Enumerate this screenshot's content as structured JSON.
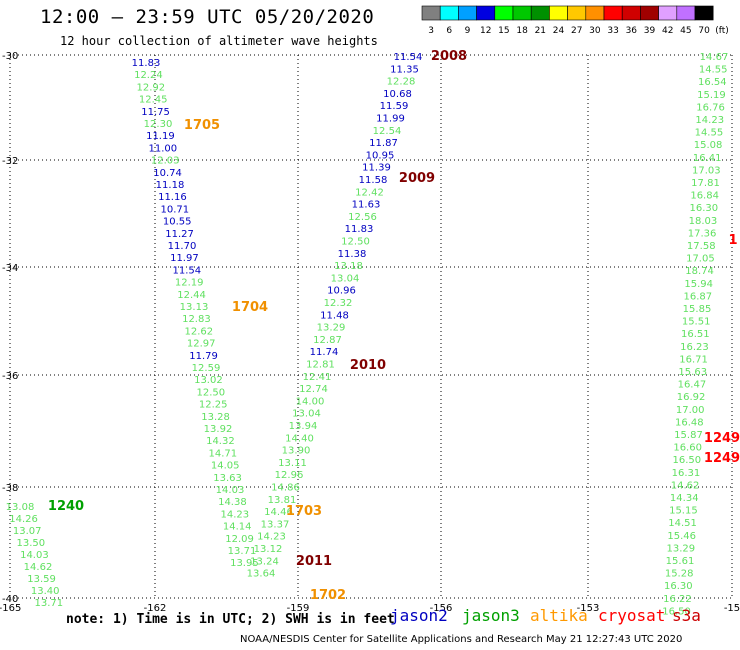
{
  "header": {
    "title": "12:00 – 23:59 UTC 05/20/2020",
    "subtitle": "12 hour collection of altimeter wave heights"
  },
  "color_scale": {
    "bins": [
      {
        "label": "3",
        "color": "#808080"
      },
      {
        "label": "6",
        "color": "#00ffff"
      },
      {
        "label": "9",
        "color": "#00a0ff"
      },
      {
        "label": "12",
        "color": "#0000e0"
      },
      {
        "label": "15",
        "color": "#00ff00"
      },
      {
        "label": "18",
        "color": "#00c800"
      },
      {
        "label": "21",
        "color": "#009000"
      },
      {
        "label": "24",
        "color": "#ffff00"
      },
      {
        "label": "27",
        "color": "#ffc800"
      },
      {
        "label": "30",
        "color": "#ff9000"
      },
      {
        "label": "33",
        "color": "#ff0000"
      },
      {
        "label": "36",
        "color": "#d00000"
      },
      {
        "label": "39",
        "color": "#a00000"
      },
      {
        "label": "42",
        "color": "#e0a0ff"
      },
      {
        "label": "45",
        "color": "#c070ff"
      },
      {
        "label": "70",
        "color": "#000000"
      }
    ],
    "unit": "(ft)"
  },
  "map": {
    "lon_labels": [
      "-165",
      "-162",
      "-159",
      "-156",
      "-153",
      "-15"
    ],
    "lat_labels": [
      "-30",
      "-32",
      "-34",
      "-36",
      "-38",
      "-40"
    ]
  },
  "colors": {
    "jason2": "#0000c0",
    "jason3": "#60e060",
    "altika": "#ff9900",
    "cryosat": "#ff0000",
    "s3a": "#cc0000",
    "time_dark": "#800000",
    "time_green": "#00a000",
    "time_orange": "#f09000",
    "time_red": "#ff0000"
  },
  "tracks": [
    {
      "type": "jason2",
      "x0": 146,
      "y0": 62,
      "dx": 2.4,
      "dy": 12.2,
      "values": [
        "11.83",
        "12.24",
        "12.92",
        "12.45",
        "11.75",
        "12.30",
        "11.19",
        "11.00",
        "12.03",
        "10.74",
        "11.18",
        "11.16",
        "10.71",
        "10.55",
        "11.27",
        "11.70",
        "11.97",
        "11.54",
        "12.19",
        "12.44",
        "13.13",
        "12.83",
        "12.62",
        "12.97",
        "11.79",
        "12.59",
        "13.02",
        "12.50",
        "12.25",
        "13.28",
        "13.92",
        "14.32",
        "14.71",
        "14.05",
        "13.63",
        "14.03",
        "14.38",
        "14.23",
        "14.14",
        "12.09",
        "13.71",
        "13.95"
      ],
      "colors": [
        "j2",
        "j3",
        "j3",
        "j3",
        "j2",
        "j3",
        "j2",
        "j2",
        "j3",
        "j2",
        "j2",
        "j2",
        "j2",
        "j2",
        "j2",
        "j2",
        "j2",
        "j2",
        "j3",
        "j3",
        "j3",
        "j3",
        "j3",
        "j3",
        "j2",
        "j3",
        "j3",
        "j3",
        "j3",
        "j3",
        "j3",
        "j3",
        "j3",
        "j3",
        "j3",
        "j3",
        "j3",
        "j3",
        "j3",
        "j3",
        "j3",
        "j3"
      ]
    },
    {
      "type": "jason3",
      "x0": 408,
      "y0": 56,
      "dx": -3.5,
      "dy": 12.3,
      "values": [
        "11.54",
        "11.35",
        "12.28",
        "10.68",
        "11.59",
        "11.99",
        "12.54",
        "11.87",
        "10.95",
        "11.39",
        "11.58",
        "12.42",
        "11.63",
        "12.56",
        "11.83",
        "12.50",
        "11.38",
        "13.18",
        "13.04",
        "10.96",
        "12.32",
        "11.48",
        "13.29",
        "12.87",
        "11.74",
        "12.81",
        "12.41",
        "12.74",
        "14.00",
        "13.04",
        "13.94",
        "14.40",
        "13.90",
        "13.11",
        "12.96",
        "14.86",
        "13.81",
        "14.46",
        "13.37",
        "14.23",
        "13.12",
        "13.24",
        "13.64"
      ],
      "colors": [
        "j2",
        "j2",
        "j3",
        "j2",
        "j2",
        "j2",
        "j3",
        "j2",
        "j2",
        "j2",
        "j2",
        "j3",
        "j2",
        "j3",
        "j2",
        "j3",
        "j2",
        "j3",
        "j3",
        "j2",
        "j3",
        "j2",
        "j3",
        "j3",
        "j2",
        "j3",
        "j3",
        "j3",
        "j3",
        "j3",
        "j3",
        "j3",
        "j3",
        "j3",
        "j3",
        "j3",
        "j3",
        "j3",
        "j3",
        "j3",
        "j3",
        "j3",
        "j3"
      ]
    },
    {
      "type": "s3a",
      "x0": 714,
      "y0": 56,
      "dx": -0.85,
      "dy": 12.6,
      "values": [
        "14.67",
        "14.55",
        "16.54",
        "15.19",
        "16.76",
        "14.23",
        "14.55",
        "15.08",
        "16.41",
        "17.03",
        "17.81",
        "16.84",
        "16.30",
        "18.03",
        "17.36",
        "17.58",
        "17.05",
        "18.74",
        "15.94",
        "16.87",
        "15.85",
        "15.51",
        "16.51",
        "16.23",
        "16.71",
        "15.63",
        "16.47",
        "16.92",
        "17.00",
        "16.48",
        "15.87",
        "16.60",
        "16.50",
        "16.31",
        "14.62",
        "14.34",
        "15.15",
        "14.51",
        "15.46",
        "13.29",
        "15.61",
        "15.28",
        "16.30",
        "16.22",
        "16.50"
      ],
      "colors": [
        "j3",
        "j3",
        "j3",
        "j3",
        "j3",
        "j3",
        "j3",
        "j3",
        "j3",
        "j3",
        "j3",
        "j3",
        "j3",
        "j3",
        "j3",
        "j3",
        "j3",
        "j3",
        "j3",
        "j3",
        "j3",
        "j3",
        "j3",
        "j3",
        "j3",
        "j3",
        "j3",
        "j3",
        "j3",
        "j3",
        "j3",
        "j3",
        "j3",
        "j3",
        "j3",
        "j3",
        "j3",
        "j3",
        "j3",
        "j3",
        "j3",
        "j3",
        "j3",
        "j3",
        "j3"
      ]
    },
    {
      "type": "jason3",
      "x0": 20,
      "y0": 506,
      "dx": 3.6,
      "dy": 12.0,
      "values": [
        "13.08",
        "14.26",
        "13.07",
        "13.50",
        "14.03",
        "14.62",
        "13.59",
        "13.40",
        "13.71"
      ],
      "colors": [
        "j3",
        "j3",
        "j3",
        "j3",
        "j3",
        "j3",
        "j3",
        "j3",
        "j3"
      ]
    }
  ],
  "time_labels": [
    {
      "text": "2008",
      "color": "time_dark"
    },
    {
      "text": "2009",
      "color": "time_dark"
    },
    {
      "text": "2010",
      "color": "time_dark"
    },
    {
      "text": "2011",
      "color": "time_dark"
    },
    {
      "text": "1705",
      "color": "time_orange"
    },
    {
      "text": "1704",
      "color": "time_orange"
    },
    {
      "text": "1703",
      "color": "time_orange"
    },
    {
      "text": "1702",
      "color": "time_orange"
    },
    {
      "text": "1240",
      "color": "time_green"
    },
    {
      "text": "1249",
      "color": "time_red"
    },
    {
      "text": "1249",
      "color": "time_red"
    },
    {
      "text": "1",
      "color": "time_red"
    }
  ],
  "note": "note: 1) Time is in UTC; 2) SWH is in feet",
  "legend": [
    {
      "label": "jason2",
      "color": "#0000c0"
    },
    {
      "label": "jason3",
      "color": "#00a000"
    },
    {
      "label": "altika",
      "color": "#ff9900"
    },
    {
      "label": "cryosat",
      "color": "#ff0000"
    },
    {
      "label": "s3a",
      "color": "#cc0000"
    }
  ],
  "footer": "NOAA/NESDIS Center for Satellite Applications and Research   May 21 12:27:43 UTC 2020"
}
